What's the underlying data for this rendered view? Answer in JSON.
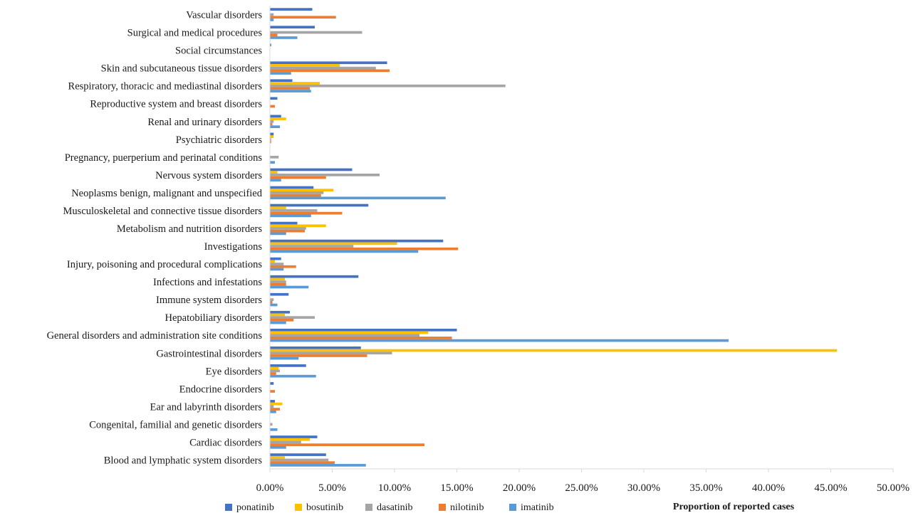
{
  "chart_data": {
    "type": "bar",
    "orientation": "horizontal",
    "title": "",
    "xlabel": "Proportion of reported cases",
    "ylabel": "",
    "xlim": [
      0,
      50
    ],
    "x_ticks": [
      "0.00%",
      "5.00%",
      "10.00%",
      "15.00%",
      "20.00%",
      "25.00%",
      "30.00%",
      "35.00%",
      "40.00%",
      "45.00%",
      "50.00%"
    ],
    "grid": false,
    "legend_position": "bottom-left",
    "categories": [
      "Vascular disorders",
      "Surgical and medical procedures",
      "Social circumstances",
      "Skin and subcutaneous tissue disorders",
      "Respiratory, thoracic and mediastinal disorders",
      "Reproductive system and breast disorders",
      "Renal and urinary disorders",
      "Psychiatric disorders",
      "Pregnancy, puerperium and perinatal conditions",
      "Nervous system disorders",
      "Neoplasms benign, malignant and unspecified",
      "Musculoskeletal and connective tissue disorders",
      "Metabolism and nutrition disorders",
      "Investigations",
      "Injury, poisoning and procedural complications",
      "Infections and infestations",
      "Immune system disorders",
      "Hepatobiliary disorders",
      "General disorders and administration site conditions",
      "Gastrointestinal disorders",
      "Eye disorders",
      "Endocrine disorders",
      "Ear and labyrinth disorders",
      "Congenital, familial and genetic disorders",
      "Cardiac disorders",
      "Blood and lymphatic system disorders"
    ],
    "series": [
      {
        "name": "ponatinib",
        "color": "#4472c4",
        "values": [
          3.4,
          3.6,
          0.1,
          9.4,
          1.8,
          0.6,
          0.9,
          0.3,
          0.0,
          6.6,
          3.5,
          7.9,
          2.2,
          13.9,
          0.9,
          7.1,
          1.5,
          1.6,
          15.0,
          7.3,
          2.9,
          0.3,
          0.4,
          0.0,
          3.8,
          4.5
        ]
      },
      {
        "name": "bosutinib",
        "color": "#ffc000",
        "values": [
          0.0,
          0.0,
          0.0,
          5.6,
          4.0,
          0.0,
          1.3,
          0.3,
          0.0,
          0.6,
          5.1,
          1.3,
          4.5,
          10.2,
          0.4,
          1.2,
          0.0,
          1.2,
          12.7,
          45.5,
          0.7,
          0.0,
          1.0,
          0.0,
          3.2,
          1.2
        ]
      },
      {
        "name": "dasatinib",
        "color": "#a5a5a5",
        "values": [
          0.3,
          7.4,
          0.0,
          8.5,
          18.9,
          0.0,
          0.3,
          0.1,
          0.7,
          8.8,
          4.3,
          3.8,
          2.9,
          6.7,
          1.1,
          1.3,
          0.3,
          3.6,
          12.0,
          9.8,
          0.8,
          0.0,
          0.3,
          0.2,
          2.5,
          4.7
        ]
      },
      {
        "name": "nilotinib",
        "color": "#ed7d31",
        "values": [
          5.3,
          0.6,
          0.0,
          9.6,
          3.2,
          0.4,
          0.2,
          0.1,
          0.0,
          4.5,
          4.1,
          5.8,
          2.8,
          15.1,
          2.1,
          1.3,
          0.2,
          1.9,
          14.6,
          7.8,
          0.5,
          0.4,
          0.8,
          0.0,
          12.4,
          5.2
        ]
      },
      {
        "name": "imatinib",
        "color": "#5b9bd5",
        "values": [
          0.3,
          2.2,
          0.0,
          1.7,
          3.3,
          0.0,
          0.8,
          0.0,
          0.4,
          0.9,
          14.1,
          3.3,
          1.3,
          11.9,
          1.1,
          3.1,
          0.6,
          1.3,
          36.8,
          2.3,
          3.7,
          0.0,
          0.5,
          0.6,
          1.3,
          7.7
        ]
      }
    ]
  }
}
